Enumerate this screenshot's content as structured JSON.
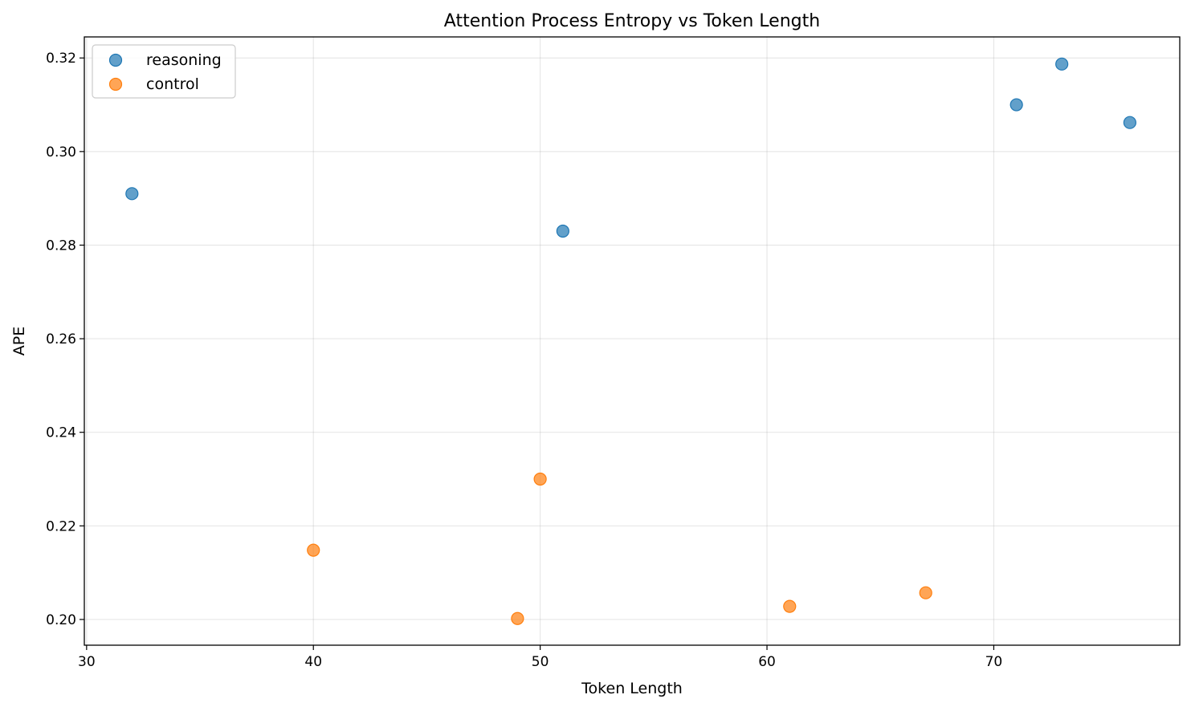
{
  "chart_data": {
    "type": "scatter",
    "title": "Attention Process Entropy vs Token Length",
    "xlabel": "Token Length",
    "ylabel": "APE",
    "xlim": [
      29.9,
      78.2
    ],
    "ylim": [
      0.1945,
      0.3245
    ],
    "xticks": [
      30,
      40,
      50,
      60,
      70
    ],
    "xtick_labels": [
      "30",
      "40",
      "50",
      "60",
      "70"
    ],
    "yticks": [
      0.2,
      0.22,
      0.24,
      0.26,
      0.28,
      0.3,
      0.32
    ],
    "ytick_labels": [
      "0.20",
      "0.22",
      "0.24",
      "0.26",
      "0.28",
      "0.30",
      "0.32"
    ],
    "grid": true,
    "legend_position": "top-left",
    "series": [
      {
        "name": "reasoning",
        "color": "#1f77b4",
        "points": [
          {
            "x": 32,
            "y": 0.291
          },
          {
            "x": 51,
            "y": 0.283
          },
          {
            "x": 71,
            "y": 0.31
          },
          {
            "x": 73,
            "y": 0.3187
          },
          {
            "x": 76,
            "y": 0.3062
          }
        ]
      },
      {
        "name": "control",
        "color": "#ff7f0e",
        "points": [
          {
            "x": 40,
            "y": 0.2148
          },
          {
            "x": 49,
            "y": 0.2002
          },
          {
            "x": 50,
            "y": 0.23
          },
          {
            "x": 61,
            "y": 0.2028
          },
          {
            "x": 67,
            "y": 0.2057
          }
        ]
      }
    ]
  }
}
